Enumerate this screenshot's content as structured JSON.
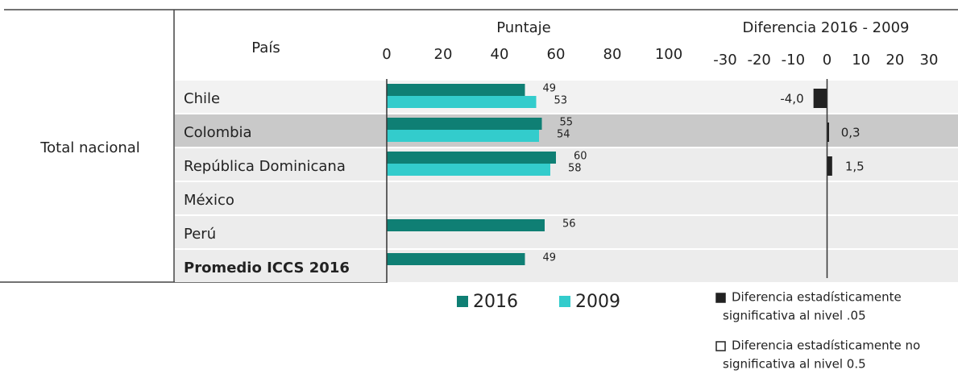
{
  "chart_data": {
    "type": "bar",
    "row_group": "Total nacional",
    "category_header": "País",
    "title": "Puntaje",
    "diff_title": "Diferencia 2016 - 2009",
    "categories": [
      "Chile",
      "Colombia",
      "República Dominicana",
      "México",
      "Perú",
      "Promedio ICCS 2016"
    ],
    "series": [
      {
        "name": "2016",
        "color": "#0f7f74",
        "values": [
          49,
          55,
          60,
          null,
          56,
          49
        ]
      },
      {
        "name": "2009",
        "color": "#33cccc",
        "values": [
          53,
          54,
          58,
          null,
          null,
          null
        ]
      }
    ],
    "xlim": [
      0,
      100
    ],
    "xticks": [
      0,
      20,
      40,
      60,
      80,
      100
    ],
    "diff": {
      "values": [
        -4.0,
        0.3,
        1.5,
        null,
        null,
        null
      ],
      "value_labels": [
        "-4,0",
        "0,3",
        "1,5",
        null,
        null,
        null
      ],
      "color": "#222222",
      "xlim": [
        -30,
        30
      ],
      "xticks": [
        -30,
        -20,
        -10,
        0,
        10,
        20,
        30
      ]
    },
    "notes": [
      [
        "Diferencia estadísticamente",
        "significativa al nivel .05"
      ],
      [
        "Diferencia estadísticamente no",
        "significativa al nivel 0.5"
      ]
    ]
  }
}
